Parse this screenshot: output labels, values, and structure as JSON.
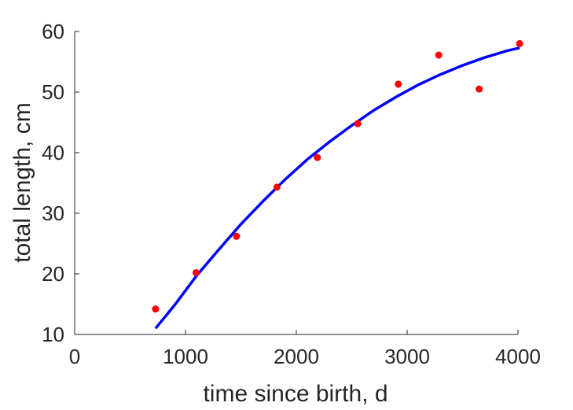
{
  "chart_data": {
    "type": "scatter",
    "xlabel": "time since birth, d",
    "ylabel": "total length, cm",
    "xlim": [
      0,
      4000
    ],
    "ylim": [
      10,
      60
    ],
    "xticks": [
      0,
      1000,
      2000,
      3000,
      4000
    ],
    "yticks": [
      10,
      20,
      30,
      40,
      50,
      60
    ],
    "grid": false,
    "series": [
      {
        "kind": "scatter",
        "color": "#ff0000",
        "x": [
          730,
          1095,
          1460,
          1825,
          2190,
          2555,
          2920,
          3285,
          3650,
          4015
        ],
        "y": [
          14.2,
          20.2,
          26.2,
          34.3,
          39.2,
          44.8,
          51.3,
          56.1,
          50.5,
          58.0
        ]
      },
      {
        "kind": "line",
        "color": "#0000ff",
        "x": [
          730,
          900,
          1100,
          1300,
          1500,
          1700,
          1900,
          2100,
          2300,
          2500,
          2700,
          2900,
          3100,
          3300,
          3500,
          3700,
          3900,
          4015
        ],
        "y": [
          11.0,
          14.8,
          19.7,
          24.0,
          28.2,
          32.0,
          35.6,
          38.9,
          41.8,
          44.5,
          47.0,
          49.2,
          51.2,
          52.9,
          54.4,
          55.7,
          56.8,
          57.3
        ]
      }
    ]
  }
}
